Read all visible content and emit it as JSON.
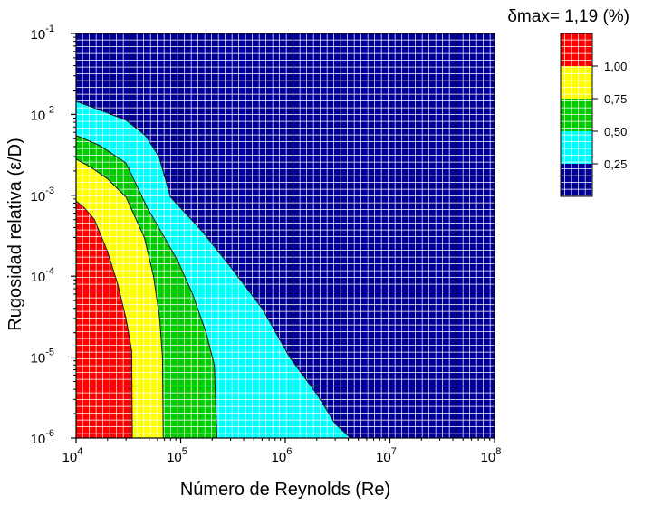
{
  "chart_data": {
    "type": "heatmap",
    "title": "δmax= 1,19 (%)",
    "xlabel": "Número de Reynolds (Re)",
    "ylabel": "Rugosidad relativa (ε/D)",
    "x_scale": "log",
    "y_scale": "log",
    "xlim": [
      10000,
      100000000
    ],
    "ylim": [
      1e-06,
      0.1
    ],
    "x_ticks": [
      {
        "base": "10",
        "exp": "4"
      },
      {
        "base": "10",
        "exp": "5"
      },
      {
        "base": "10",
        "exp": "6"
      },
      {
        "base": "10",
        "exp": "7"
      },
      {
        "base": "10",
        "exp": "8"
      }
    ],
    "y_ticks": [
      {
        "base": "10",
        "exp": "-6"
      },
      {
        "base": "10",
        "exp": "-5"
      },
      {
        "base": "10",
        "exp": "-4"
      },
      {
        "base": "10",
        "exp": "-3"
      },
      {
        "base": "10",
        "exp": "-2"
      },
      {
        "base": "10",
        "exp": "-1"
      }
    ],
    "grid": true,
    "legend_position": "top-right",
    "colorbar": {
      "levels": [
        {
          "label": "",
          "color": "#ff0000",
          "range": [
            1.0,
            1.19
          ]
        },
        {
          "label": "1,00",
          "color": "#ffff00",
          "range": [
            0.75,
            1.0
          ]
        },
        {
          "label": "0,75",
          "color": "#00cc00",
          "range": [
            0.5,
            0.75
          ]
        },
        {
          "label": "0,50",
          "color": "#00ffff",
          "range": [
            0.25,
            0.5
          ]
        },
        {
          "label": "0,25",
          "color": "#000099",
          "range": [
            0.0,
            0.25
          ]
        }
      ]
    },
    "contours": [
      {
        "level": "1,00",
        "color": "#ff0000",
        "points": [
          [
            10000,
            0.00085
          ],
          [
            12000,
            0.0007
          ],
          [
            15000,
            0.0005
          ],
          [
            20000,
            0.0002
          ],
          [
            25000,
            8e-05
          ],
          [
            30000,
            3e-05
          ],
          [
            34000,
            1.2e-05
          ],
          [
            34500,
            1e-06
          ]
        ]
      },
      {
        "level": "0,75",
        "color": "#ffff00",
        "points": [
          [
            10000,
            0.0028
          ],
          [
            14000,
            0.0022
          ],
          [
            20000,
            0.0016
          ],
          [
            30000,
            0.00095
          ],
          [
            45000,
            0.0003
          ],
          [
            55000,
            0.0001
          ],
          [
            63000,
            3e-05
          ],
          [
            67000,
            1e-05
          ],
          [
            68000,
            1e-06
          ]
        ]
      },
      {
        "level": "0,50",
        "color": "#00cc00",
        "points": [
          [
            10000,
            0.0055
          ],
          [
            17000,
            0.0041
          ],
          [
            30000,
            0.0025
          ],
          [
            48000,
            0.0007
          ],
          [
            70000,
            0.0003
          ],
          [
            95000,
            0.00015
          ],
          [
            130000,
            6e-05
          ],
          [
            175000,
            2e-05
          ],
          [
            210000,
            8e-06
          ],
          [
            222000,
            1e-06
          ]
        ]
      },
      {
        "level": "0,25",
        "color": "#00ffff",
        "points": [
          [
            10000,
            0.0145
          ],
          [
            15000,
            0.012
          ],
          [
            30000,
            0.0085
          ],
          [
            46000,
            0.0055
          ],
          [
            62000,
            0.003
          ],
          [
            80000,
            0.00095
          ],
          [
            160000,
            0.00036
          ],
          [
            300000,
            0.00013
          ],
          [
            600000,
            4e-05
          ],
          [
            1100000,
            1e-05
          ],
          [
            2000000,
            3.5e-06
          ],
          [
            3000000,
            1.5e-06
          ],
          [
            4200000,
            1e-06
          ]
        ]
      }
    ]
  }
}
